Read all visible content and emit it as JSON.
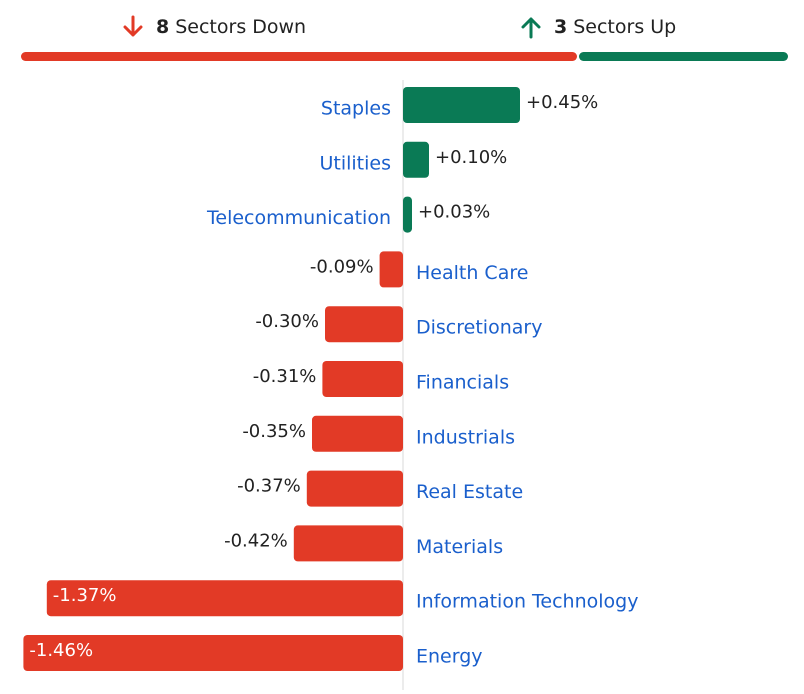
{
  "summary": {
    "down_count": "8",
    "down_label": "Sectors Down",
    "up_count": "3",
    "up_label": "Sectors Up",
    "down_icon": "arrow-down-icon",
    "up_icon": "arrow-up-icon"
  },
  "colors": {
    "down": "#e23a26",
    "up": "#0a7a55",
    "label": "#1a5fcc",
    "text": "#222222",
    "axis": "#d8d8d8"
  },
  "chart_data": {
    "type": "bar",
    "orientation": "horizontal",
    "categories": [
      "Staples",
      "Utilities",
      "Telecommunication",
      "Health Care",
      "Discretionary",
      "Financials",
      "Industrials",
      "Real Estate",
      "Materials",
      "Information Technology",
      "Energy"
    ],
    "values": [
      0.45,
      0.1,
      0.03,
      -0.09,
      -0.3,
      -0.31,
      -0.35,
      -0.37,
      -0.42,
      -1.37,
      -1.46
    ],
    "value_labels": [
      "+0.45%",
      "+0.10%",
      "+0.03%",
      "-0.09%",
      "-0.30%",
      "-0.31%",
      "-0.35%",
      "-0.37%",
      "-0.42%",
      "-1.37%",
      "-1.46%"
    ],
    "unit": "%"
  }
}
